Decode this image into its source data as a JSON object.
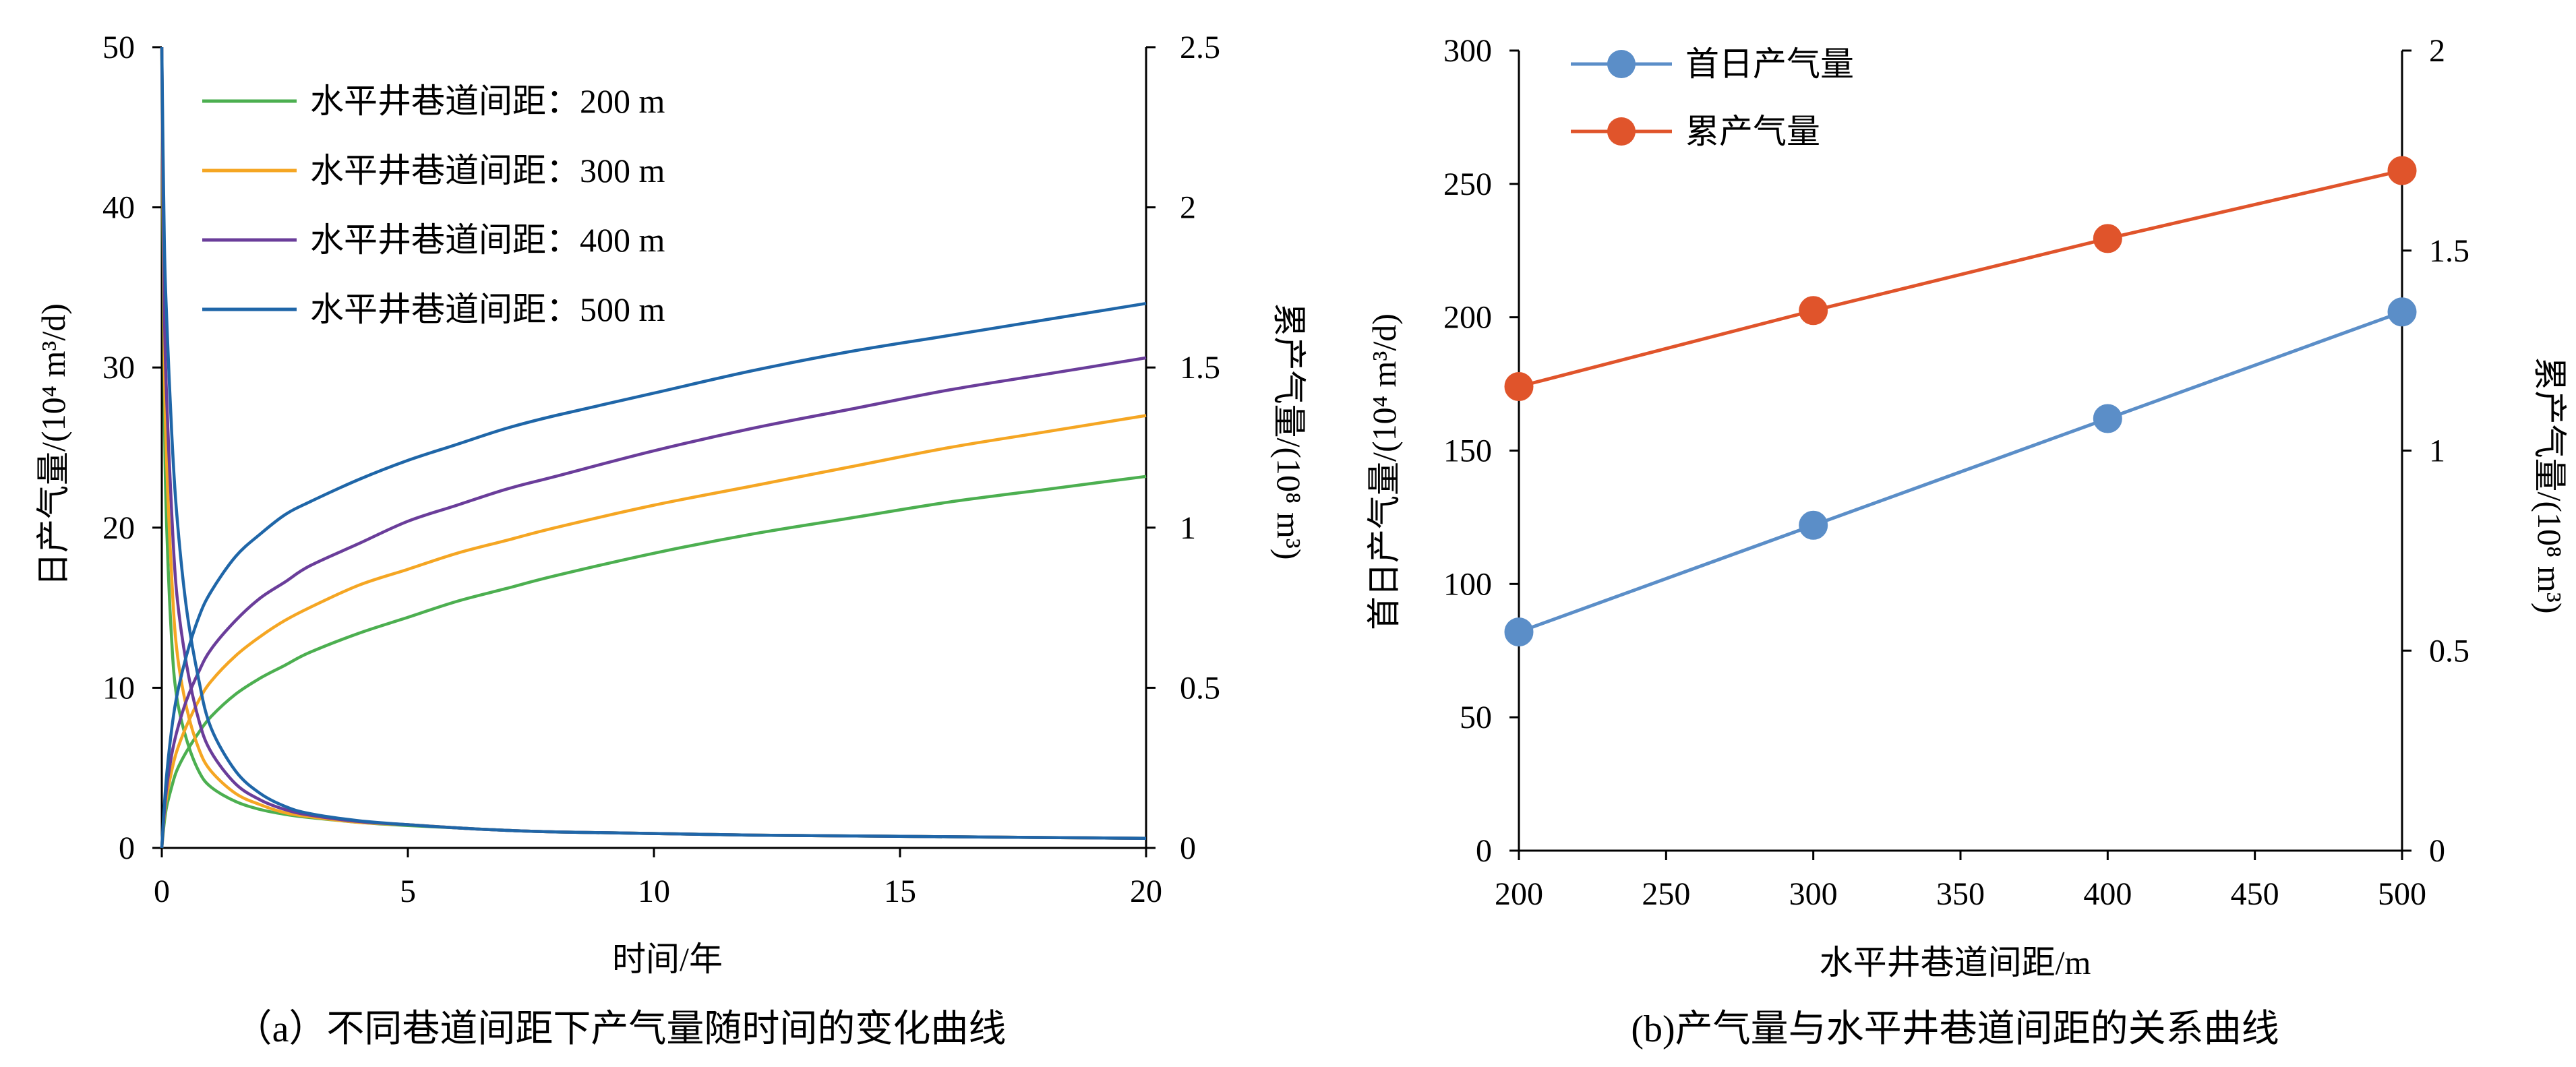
{
  "figure": {
    "panel_a": {
      "caption": "（a）不同巷道间距下产气量随时间的变化曲线",
      "xlabel": "时间/年",
      "ylabel_left": "日产气量/(10⁴ m³/d)",
      "ylabel_right": "累产气量/(10⁸ m³)"
    },
    "panel_b": {
      "caption": "(b)产气量与水平井巷道间距的关系曲线",
      "xlabel": "水平井巷道间距/m",
      "ylabel_left": "首日产气量/(10⁴ m³/d)",
      "ylabel_right": "累产气量/(10⁸ m³)"
    }
  },
  "chart_data": [
    {
      "type": "line",
      "title": "（a）不同巷道间距下产气量随时间的变化曲线",
      "xlabel": "时间/年",
      "ylabel": "日产气量/(10⁴ m³/d)",
      "y2label": "累产气量/(10⁸ m³)",
      "xlim": [
        0,
        20
      ],
      "ylim": [
        0,
        50
      ],
      "y2lim": [
        0,
        2.5
      ],
      "x_ticks": [
        "0",
        "5",
        "10",
        "15",
        "20"
      ],
      "y_ticks": [
        "0",
        "10",
        "20",
        "30",
        "40",
        "50"
      ],
      "y2_ticks": [
        "0",
        "0.5",
        "1",
        "1.5",
        "2",
        "2.5"
      ],
      "grid": false,
      "legend_position": "top-left",
      "x": [
        0,
        0.05,
        0.1,
        0.2,
        0.3,
        0.5,
        0.75,
        1,
        1.5,
        2,
        2.5,
        3,
        4,
        5,
        6,
        7,
        8,
        10,
        12,
        14,
        16,
        18,
        20
      ],
      "series": [
        {
          "name": "水平井巷道间距：200 m",
          "color": "#4caf50",
          "daily_rate": [
            50,
            28,
            20,
            13,
            9.5,
            6.8,
            4.8,
            3.8,
            2.9,
            2.4,
            2.1,
            1.9,
            1.6,
            1.4,
            1.25,
            1.1,
            1.0,
            0.9,
            0.8,
            0.75,
            0.7,
            0.65,
            0.6
          ],
          "cumulative": [
            0,
            0.08,
            0.13,
            0.19,
            0.24,
            0.3,
            0.36,
            0.41,
            0.48,
            0.53,
            0.57,
            0.61,
            0.67,
            0.72,
            0.77,
            0.81,
            0.85,
            0.92,
            0.98,
            1.03,
            1.08,
            1.12,
            1.16
          ]
        },
        {
          "name": "水平井巷道间距：300 m",
          "color": "#f5a623",
          "daily_rate": [
            50,
            31,
            24,
            17,
            12.5,
            8.8,
            6.2,
            4.8,
            3.4,
            2.7,
            2.2,
            1.95,
            1.6,
            1.45,
            1.25,
            1.1,
            1.0,
            0.9,
            0.8,
            0.75,
            0.7,
            0.65,
            0.6
          ],
          "cumulative": [
            0,
            0.1,
            0.16,
            0.24,
            0.3,
            0.38,
            0.46,
            0.52,
            0.6,
            0.66,
            0.71,
            0.75,
            0.82,
            0.87,
            0.92,
            0.96,
            1.0,
            1.07,
            1.13,
            1.19,
            1.25,
            1.3,
            1.35
          ]
        },
        {
          "name": "水平井巷道间距：400 m",
          "color": "#6a3d9a",
          "daily_rate": [
            50,
            34,
            28,
            21,
            16,
            11.5,
            8,
            6,
            4,
            3,
            2.4,
            2.05,
            1.65,
            1.45,
            1.25,
            1.1,
            1.0,
            0.9,
            0.8,
            0.75,
            0.7,
            0.65,
            0.6
          ],
          "cumulative": [
            0,
            0.11,
            0.19,
            0.29,
            0.36,
            0.46,
            0.55,
            0.62,
            0.71,
            0.78,
            0.83,
            0.88,
            0.95,
            1.02,
            1.07,
            1.12,
            1.16,
            1.24,
            1.31,
            1.37,
            1.43,
            1.48,
            1.53
          ]
        },
        {
          "name": "水平井巷道间距：500 m",
          "color": "#1f66a8",
          "daily_rate": [
            50,
            38,
            33,
            26,
            21,
            15,
            10.5,
            7.5,
            4.8,
            3.4,
            2.6,
            2.15,
            1.7,
            1.45,
            1.25,
            1.1,
            1.0,
            0.9,
            0.8,
            0.75,
            0.7,
            0.65,
            0.6
          ],
          "cumulative": [
            0,
            0.13,
            0.23,
            0.37,
            0.47,
            0.6,
            0.72,
            0.8,
            0.91,
            0.98,
            1.04,
            1.08,
            1.15,
            1.21,
            1.26,
            1.31,
            1.35,
            1.42,
            1.49,
            1.55,
            1.6,
            1.65,
            1.7
          ]
        }
      ]
    },
    {
      "type": "line",
      "title": "(b)产气量与水平井巷道间距的关系曲线",
      "xlabel": "水平井巷道间距/m",
      "ylabel": "首日产气量/(10⁴ m³/d)",
      "y2label": "累产气量/(10⁸ m³)",
      "xlim": [
        200,
        500
      ],
      "ylim": [
        0,
        300
      ],
      "y2lim": [
        0,
        2
      ],
      "x_ticks": [
        "200",
        "250",
        "300",
        "350",
        "400",
        "450",
        "500"
      ],
      "y_ticks": [
        "0",
        "50",
        "100",
        "150",
        "200",
        "250",
        "300"
      ],
      "y2_ticks": [
        "0",
        "0.5",
        "1",
        "1.5",
        "2"
      ],
      "grid": false,
      "legend_position": "top-left",
      "x": [
        200,
        300,
        400,
        500
      ],
      "series": [
        {
          "name": "首日产气量",
          "axis": "left",
          "color": "#5b8ec8",
          "values": [
            82,
            122,
            162,
            202
          ]
        },
        {
          "name": "累产气量",
          "axis": "right",
          "color": "#e0542b",
          "values": [
            1.16,
            1.35,
            1.53,
            1.7
          ]
        }
      ]
    }
  ]
}
